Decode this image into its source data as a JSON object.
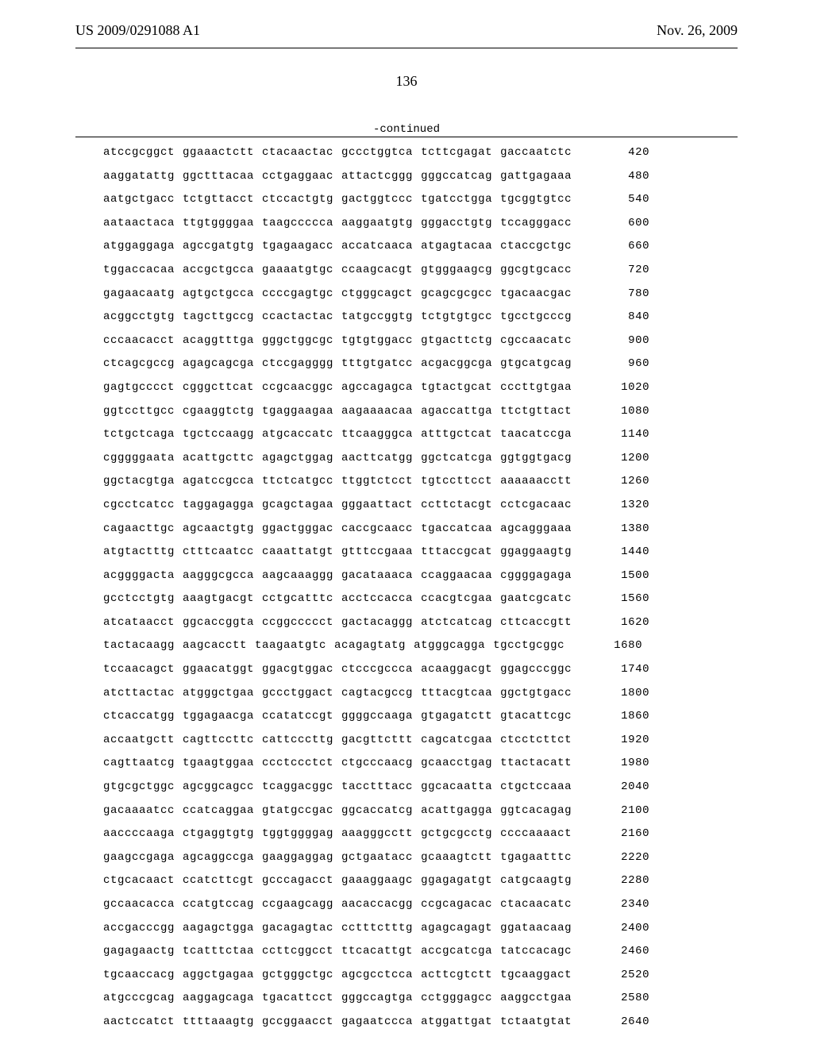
{
  "header": {
    "publication_id": "US 2009/0291088 A1",
    "publication_date": "Nov. 26, 2009"
  },
  "page_number": "136",
  "continued_label": "-continued",
  "sequence_rows": [
    {
      "groups": [
        "atccgcggct",
        "ggaaactctt",
        "ctacaactac",
        "gccctggtca",
        "tcttcgagat",
        "gaccaatctc"
      ],
      "pos": "420"
    },
    {
      "groups": [
        "aaggatattg",
        "ggctttacaa",
        "cctgaggaac",
        "attactcggg",
        "gggccatcag",
        "gattgagaaa"
      ],
      "pos": "480"
    },
    {
      "groups": [
        "aatgctgacc",
        "tctgttacct",
        "ctccactgtg",
        "gactggtccc",
        "tgatcctgga",
        "tgcggtgtcc"
      ],
      "pos": "540"
    },
    {
      "groups": [
        "aataactaca",
        "ttgtggggaa",
        "taagccccca",
        "aaggaatgtg",
        "gggacctgtg",
        "tccagggacc"
      ],
      "pos": "600"
    },
    {
      "groups": [
        "atggaggaga",
        "agccgatgtg",
        "tgagaagacc",
        "accatcaaca",
        "atgagtacaa",
        "ctaccgctgc"
      ],
      "pos": "660"
    },
    {
      "groups": [
        "tggaccacaa",
        "accgctgcca",
        "gaaaatgtgc",
        "ccaagcacgt",
        "gtgggaagcg",
        "ggcgtgcacc"
      ],
      "pos": "720"
    },
    {
      "groups": [
        "gagaacaatg",
        "agtgctgcca",
        "ccccgagtgc",
        "ctgggcagct",
        "gcagcgcgcc",
        "tgacaacgac"
      ],
      "pos": "780"
    },
    {
      "groups": [
        "acggcctgtg",
        "tagcttgccg",
        "ccactactac",
        "tatgccggtg",
        "tctgtgtgcc",
        "tgcctgcccg"
      ],
      "pos": "840"
    },
    {
      "groups": [
        "cccaacacct",
        "acaggtttga",
        "gggctggcgc",
        "tgtgtggacc",
        "gtgacttctg",
        "cgccaacatc"
      ],
      "pos": "900"
    },
    {
      "groups": [
        "ctcagcgccg",
        "agagcagcga",
        "ctccgagggg",
        "tttgtgatcc",
        "acgacggcga",
        "gtgcatgcag"
      ],
      "pos": "960"
    },
    {
      "groups": [
        "gagtgcccct",
        "cgggcttcat",
        "ccgcaacggc",
        "agccagagca",
        "tgtactgcat",
        "cccttgtgaa"
      ],
      "pos": "1020"
    },
    {
      "groups": [
        "ggtccttgcc",
        "cgaaggtctg",
        "tgaggaagaa",
        "aagaaaacaa",
        "agaccattga",
        "ttctgttact"
      ],
      "pos": "1080"
    },
    {
      "groups": [
        "tctgctcaga",
        "tgctccaagg",
        "atgcaccatc",
        "ttcaagggca",
        "atttgctcat",
        "taacatccga"
      ],
      "pos": "1140"
    },
    {
      "groups": [
        "cgggggaata",
        "acattgcttc",
        "agagctggag",
        "aacttcatgg",
        "ggctcatcga",
        "ggtggtgacg"
      ],
      "pos": "1200"
    },
    {
      "groups": [
        "ggctacgtga",
        "agatccgcca",
        "ttctcatgcc",
        "ttggtctcct",
        "tgtccttcct",
        "aaaaaacctt"
      ],
      "pos": "1260"
    },
    {
      "groups": [
        "cgcctcatcc",
        "taggagagga",
        "gcagctagaa",
        "gggaattact",
        "ccttctacgt",
        "cctcgacaac"
      ],
      "pos": "1320"
    },
    {
      "groups": [
        "cagaacttgc",
        "agcaactgtg",
        "ggactgggac",
        "caccgcaacc",
        "tgaccatcaa",
        "agcagggaaa"
      ],
      "pos": "1380"
    },
    {
      "groups": [
        "atgtactttg",
        "ctttcaatcc",
        "caaattatgt",
        "gtttccgaaa",
        "tttaccgcat",
        "ggaggaagtg"
      ],
      "pos": "1440"
    },
    {
      "groups": [
        "acggggacta",
        "aagggcgcca",
        "aagcaaaggg",
        "gacataaaca",
        "ccaggaacaa",
        "cggggagaga"
      ],
      "pos": "1500"
    },
    {
      "groups": [
        "gcctcctgtg",
        "aaagtgacgt",
        "cctgcatttc",
        "acctccacca",
        "ccacgtcgaa",
        "gaatcgcatc"
      ],
      "pos": "1560"
    },
    {
      "groups": [
        "atcataacct",
        "ggcaccggta",
        "ccggccccct",
        "gactacaggg",
        "atctcatcag",
        "cttcaccgtt"
      ],
      "pos": "1620"
    },
    {
      "groups": [
        "tactacaagg",
        "aagcacctt",
        "taagaatgtc",
        "acagagtatg",
        "atgggcagga",
        "tgcctgcggc"
      ],
      "pos": "1680"
    },
    {
      "groups": [
        "tccaacagct",
        "ggaacatggt",
        "ggacgtggac",
        "ctcccgccca",
        "acaaggacgt",
        "ggagcccggc"
      ],
      "pos": "1740"
    },
    {
      "groups": [
        "atcttactac",
        "atgggctgaa",
        "gccctggact",
        "cagtacgccg",
        "tttacgtcaa",
        "ggctgtgacc"
      ],
      "pos": "1800"
    },
    {
      "groups": [
        "ctcaccatgg",
        "tggagaacga",
        "ccatatccgt",
        "ggggccaaga",
        "gtgagatctt",
        "gtacattcgc"
      ],
      "pos": "1860"
    },
    {
      "groups": [
        "accaatgctt",
        "cagttccttc",
        "cattcccttg",
        "gacgttcttt",
        "cagcatcgaa",
        "ctcctcttct"
      ],
      "pos": "1920"
    },
    {
      "groups": [
        "cagttaatcg",
        "tgaagtggaa",
        "ccctccctct",
        "ctgcccaacg",
        "gcaacctgag",
        "ttactacatt"
      ],
      "pos": "1980"
    },
    {
      "groups": [
        "gtgcgctggc",
        "agcggcagcc",
        "tcaggacggc",
        "tacctttacc",
        "ggcacaatta",
        "ctgctccaaa"
      ],
      "pos": "2040"
    },
    {
      "groups": [
        "gacaaaatcc",
        "ccatcaggaa",
        "gtatgccgac",
        "ggcaccatcg",
        "acattgagga",
        "ggtcacagag"
      ],
      "pos": "2100"
    },
    {
      "groups": [
        "aaccccaaga",
        "ctgaggtgtg",
        "tggtggggag",
        "aaagggcctt",
        "gctgcgcctg",
        "ccccaaaact"
      ],
      "pos": "2160"
    },
    {
      "groups": [
        "gaagccgaga",
        "agcaggccga",
        "gaaggaggag",
        "gctgaatacc",
        "gcaaagtctt",
        "tgagaatttc"
      ],
      "pos": "2220"
    },
    {
      "groups": [
        "ctgcacaact",
        "ccatcttcgt",
        "gcccagacct",
        "gaaaggaagc",
        "ggagagatgt",
        "catgcaagtg"
      ],
      "pos": "2280"
    },
    {
      "groups": [
        "gccaacacca",
        "ccatgtccag",
        "ccgaagcagg",
        "aacaccacgg",
        "ccgcagacac",
        "ctacaacatc"
      ],
      "pos": "2340"
    },
    {
      "groups": [
        "accgacccgg",
        "aagagctgga",
        "gacagagtac",
        "cctttctttg",
        "agagcagagt",
        "ggataacaag"
      ],
      "pos": "2400"
    },
    {
      "groups": [
        "gagagaactg",
        "tcatttctaa",
        "ccttcggcct",
        "ttcacattgt",
        "accgcatcga",
        "tatccacagc"
      ],
      "pos": "2460"
    },
    {
      "groups": [
        "tgcaaccacg",
        "aggctgagaa",
        "gctgggctgc",
        "agcgcctcca",
        "acttcgtctt",
        "tgcaaggact"
      ],
      "pos": "2520"
    },
    {
      "groups": [
        "atgcccgcag",
        "aaggagcaga",
        "tgacattcct",
        "gggccagtga",
        "cctgggagcc",
        "aaggcctgaa"
      ],
      "pos": "2580"
    },
    {
      "groups": [
        "aactccatct",
        "ttttaaagtg",
        "gccggaacct",
        "gagaatccca",
        "atggattgat",
        "tctaatgtat"
      ],
      "pos": "2640"
    }
  ]
}
